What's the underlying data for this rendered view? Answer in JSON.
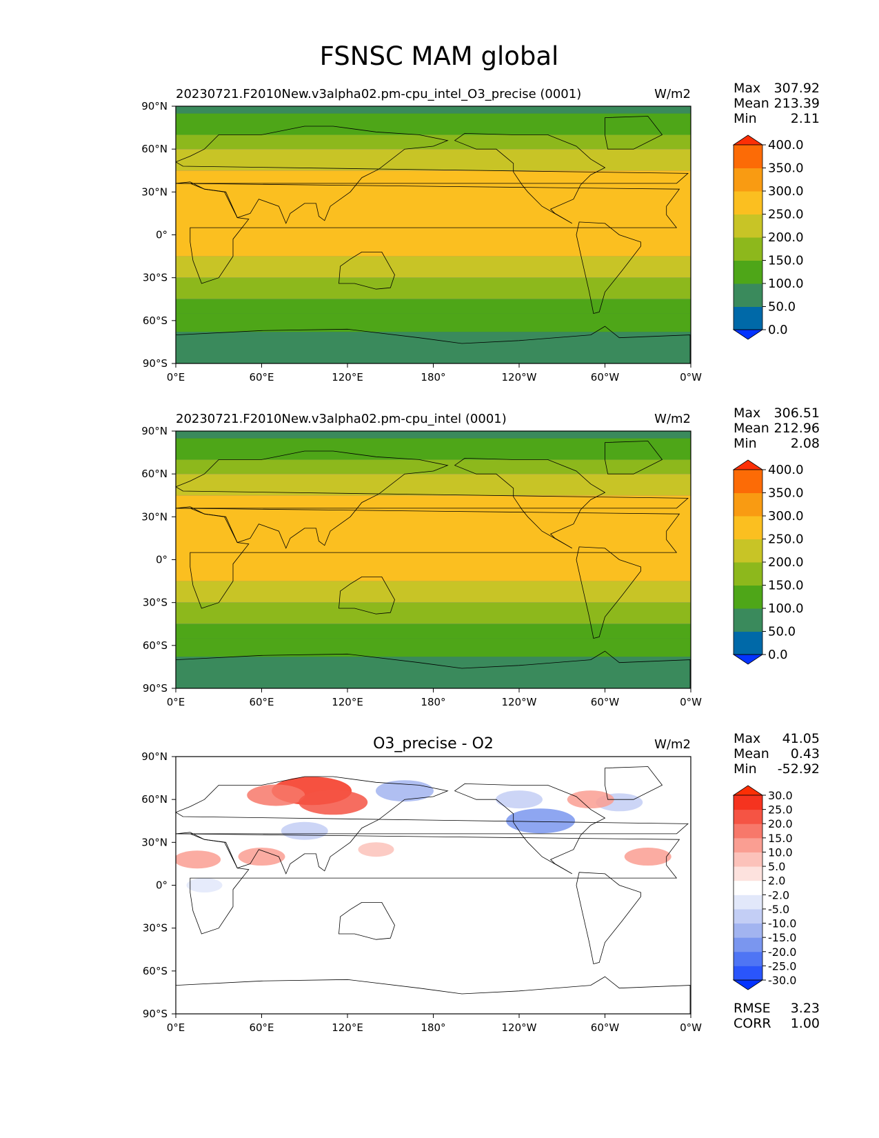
{
  "figure": {
    "title": "FSNSC MAM global"
  },
  "chart_data": [
    {
      "type": "heatmap",
      "title": "20230721.F2010New.v3alpha02.pm-cpu_intel_O3_precise (0001)",
      "units": "W/m2",
      "stats": {
        "max_label": "Max",
        "max": "307.92",
        "mean_label": "Mean",
        "mean": "213.39",
        "min_label": "Min",
        "min": "2.11"
      },
      "xlabels": [
        "0°E",
        "60°E",
        "120°E",
        "180°",
        "120°W",
        "60°W",
        "0°W"
      ],
      "ylabels": [
        "90°N",
        "60°N",
        "30°N",
        "0°",
        "30°S",
        "60°S",
        "90°S"
      ],
      "xlim": [
        0,
        360
      ],
      "ylim": [
        -90,
        90
      ],
      "colorbar": {
        "levels": [
          "0.0",
          "50.0",
          "100.0",
          "150.0",
          "200.0",
          "250.0",
          "300.0",
          "350.0",
          "400.0"
        ],
        "colors": [
          "#0433ff",
          "#0069a8",
          "#3a8a5c",
          "#4ea618",
          "#8db81c",
          "#c8c426",
          "#fbbf20",
          "#f99b12",
          "#fc6b06",
          "#fc2f06"
        ]
      },
      "zonal_bands": [
        {
          "lat": [
            90,
            85
          ],
          "value": 75
        },
        {
          "lat": [
            85,
            70
          ],
          "value": 125
        },
        {
          "lat": [
            70,
            60
          ],
          "value": 175
        },
        {
          "lat": [
            60,
            45
          ],
          "value": 225
        },
        {
          "lat": [
            45,
            -15
          ],
          "value": 275
        },
        {
          "lat": [
            -15,
            -30
          ],
          "value": 225
        },
        {
          "lat": [
            -30,
            -45
          ],
          "value": 175
        },
        {
          "lat": [
            -45,
            -55
          ],
          "value": 125
        },
        {
          "lat": [
            -55,
            -68
          ],
          "value": 100
        },
        {
          "lat": [
            -68,
            -90
          ],
          "value": 75
        }
      ]
    },
    {
      "type": "heatmap",
      "title": "20230721.F2010New.v3alpha02.pm-cpu_intel (0001)",
      "units": "W/m2",
      "stats": {
        "max_label": "Max",
        "max": "306.51",
        "mean_label": "Mean",
        "mean": "212.96",
        "min_label": "Min",
        "min": "2.08"
      },
      "xlabels": [
        "0°E",
        "60°E",
        "120°E",
        "180°",
        "120°W",
        "60°W",
        "0°W"
      ],
      "ylabels": [
        "90°N",
        "60°N",
        "30°N",
        "0°",
        "30°S",
        "60°S",
        "90°S"
      ],
      "xlim": [
        0,
        360
      ],
      "ylim": [
        -90,
        90
      ],
      "colorbar": {
        "levels": [
          "0.0",
          "50.0",
          "100.0",
          "150.0",
          "200.0",
          "250.0",
          "300.0",
          "350.0",
          "400.0"
        ],
        "colors": [
          "#0433ff",
          "#0069a8",
          "#3a8a5c",
          "#4ea618",
          "#8db81c",
          "#c8c426",
          "#fbbf20",
          "#f99b12",
          "#fc6b06",
          "#fc2f06"
        ]
      },
      "zonal_bands": [
        {
          "lat": [
            90,
            85
          ],
          "value": 75
        },
        {
          "lat": [
            85,
            70
          ],
          "value": 125
        },
        {
          "lat": [
            70,
            60
          ],
          "value": 175
        },
        {
          "lat": [
            60,
            45
          ],
          "value": 225
        },
        {
          "lat": [
            45,
            -15
          ],
          "value": 275
        },
        {
          "lat": [
            -15,
            -30
          ],
          "value": 225
        },
        {
          "lat": [
            -30,
            -45
          ],
          "value": 175
        },
        {
          "lat": [
            -45,
            -55
          ],
          "value": 125
        },
        {
          "lat": [
            -55,
            -68
          ],
          "value": 100
        },
        {
          "lat": [
            -68,
            -90
          ],
          "value": 75
        }
      ]
    },
    {
      "type": "heatmap",
      "title": "O3_precise - O2",
      "units": "W/m2",
      "stats": {
        "max_label": "Max",
        "max": "41.05",
        "mean_label": "Mean",
        "mean": "0.43",
        "min_label": "Min",
        "min": "-52.92"
      },
      "extra_stats": {
        "rmse_label": "RMSE",
        "rmse": "3.23",
        "corr_label": "CORR",
        "corr": "1.00"
      },
      "xlabels": [
        "0°E",
        "60°E",
        "120°E",
        "180°",
        "120°W",
        "60°W",
        "0°W"
      ],
      "ylabels": [
        "90°N",
        "60°N",
        "30°N",
        "0°",
        "30°S",
        "60°S",
        "90°S"
      ],
      "xlim": [
        0,
        360
      ],
      "ylim": [
        -90,
        90
      ],
      "colorbar": {
        "levels": [
          "-30.0",
          "-25.0",
          "-20.0",
          "-15.0",
          "-10.0",
          "-5.0",
          "-2.0",
          "2.0",
          "5.0",
          "10.0",
          "15.0",
          "20.0",
          "25.0",
          "30.0"
        ],
        "colors": [
          "#0433ff",
          "#2a55fb",
          "#4f75f4",
          "#7a96ef",
          "#a2b4f0",
          "#c3cef5",
          "#e2e8fa",
          "#ffffff",
          "#fde2de",
          "#fcc2ba",
          "#fa9e92",
          "#f7786a",
          "#f55444",
          "#f5331f",
          "#fc2f06"
        ]
      },
      "anomalies": [
        {
          "lon": 95,
          "lat": 66,
          "value": 25
        },
        {
          "lon": 70,
          "lat": 63,
          "value": 15
        },
        {
          "lon": 110,
          "lat": 58,
          "value": 20
        },
        {
          "lon": 15,
          "lat": 18,
          "value": 10
        },
        {
          "lon": 60,
          "lat": 20,
          "value": 10
        },
        {
          "lon": 160,
          "lat": 66,
          "value": -15
        },
        {
          "lon": 255,
          "lat": 45,
          "value": -20
        },
        {
          "lon": 240,
          "lat": 60,
          "value": -10
        },
        {
          "lon": 310,
          "lat": 58,
          "value": -10
        },
        {
          "lon": 20,
          "lat": 0,
          "value": -5
        },
        {
          "lon": 290,
          "lat": 60,
          "value": 10
        },
        {
          "lon": 330,
          "lat": 20,
          "value": 10
        },
        {
          "lon": 90,
          "lat": 38,
          "value": -10
        },
        {
          "lon": 140,
          "lat": 25,
          "value": 5
        }
      ]
    }
  ]
}
